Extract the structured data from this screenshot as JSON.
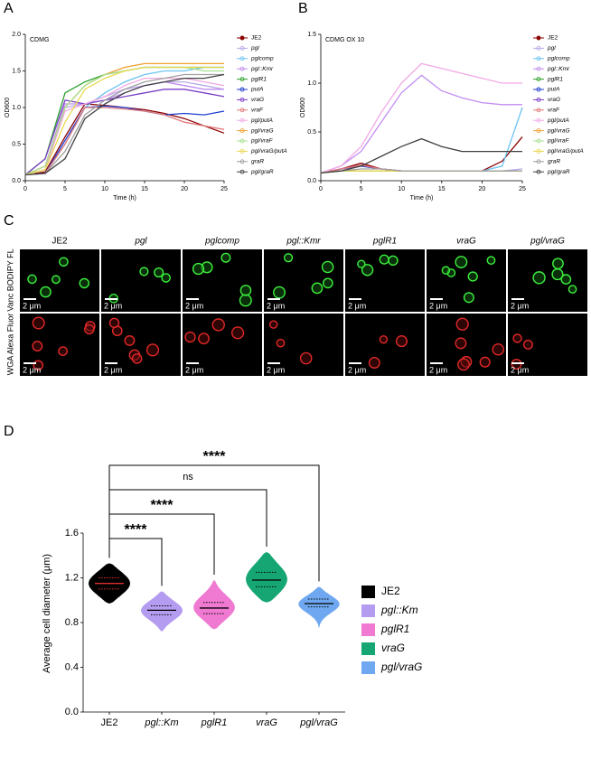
{
  "panel_labels": [
    "A",
    "B",
    "C",
    "D"
  ],
  "chart_data": [
    {
      "type": "line",
      "title": "CDMG",
      "x_label": "Time (h)",
      "y_label": "OD600",
      "x": [
        0,
        2.5,
        5,
        7.5,
        10,
        12.5,
        15,
        17.5,
        20,
        22.5,
        25
      ],
      "xlim": [
        0,
        25
      ],
      "xticks": [
        0,
        5,
        10,
        15,
        20,
        25
      ],
      "ylim": [
        0,
        2
      ],
      "yticks": [
        {
          "value": 0,
          "label": "0.0"
        },
        0.5,
        {
          "value": 1,
          "label": "1.0"
        },
        1.5,
        {
          "value": 2,
          "label": "2.0"
        }
      ],
      "series": [
        {
          "name": "JE2",
          "color": "#8b0000",
          "values": [
            0.08,
            0.12,
            0.6,
            1.05,
            1.03,
            1.0,
            0.97,
            0.92,
            0.85,
            0.75,
            0.65
          ]
        },
        {
          "name": "pgl",
          "color": "#b8a9e8",
          "values": [
            0.08,
            0.15,
            1.0,
            1.05,
            1.15,
            1.25,
            1.3,
            1.35,
            1.35,
            1.3,
            1.25
          ]
        },
        {
          "name": "pglcomp",
          "color": "#6cc3f0",
          "values": [
            0.08,
            0.1,
            0.5,
            1.0,
            1.2,
            1.35,
            1.45,
            1.5,
            1.5,
            1.55,
            1.55
          ]
        },
        {
          "name": "pgl::Kmr",
          "color": "#c08cf0",
          "values": [
            0.08,
            0.2,
            1.05,
            1.05,
            1.1,
            1.2,
            1.3,
            1.35,
            1.3,
            1.25,
            1.25
          ]
        },
        {
          "name": "pglR1",
          "color": "#2ca02c",
          "values": [
            0.08,
            0.3,
            1.2,
            1.35,
            1.45,
            1.5,
            1.55,
            1.55,
            1.55,
            1.55,
            1.55
          ]
        },
        {
          "name": "putA",
          "color": "#1f3fd0",
          "values": [
            0.08,
            0.1,
            0.55,
            1.0,
            1.02,
            1.0,
            0.95,
            0.9,
            0.92,
            0.9,
            0.95
          ]
        },
        {
          "name": "vraG",
          "color": "#7b3fc8",
          "values": [
            0.08,
            0.3,
            1.1,
            1.05,
            1.1,
            1.15,
            1.2,
            1.25,
            1.25,
            1.2,
            1.15
          ]
        },
        {
          "name": "vraF",
          "color": "#e07a7a",
          "values": [
            0.08,
            0.1,
            0.5,
            1.0,
            1.0,
            0.98,
            0.95,
            0.9,
            0.8,
            0.75,
            0.7
          ]
        },
        {
          "name": "pgl/putA",
          "color": "#f2a9e6",
          "values": [
            0.08,
            0.15,
            0.95,
            1.05,
            1.15,
            1.3,
            1.4,
            1.4,
            1.4,
            1.35,
            1.3
          ]
        },
        {
          "name": "pgl/vraG",
          "color": "#f0a030",
          "values": [
            0.08,
            0.2,
            1.0,
            1.3,
            1.45,
            1.55,
            1.6,
            1.6,
            1.6,
            1.6,
            1.6
          ]
        },
        {
          "name": "pgl/vraF",
          "color": "#a8e090",
          "values": [
            0.08,
            0.2,
            1.0,
            1.3,
            1.45,
            1.5,
            1.55,
            1.55,
            1.55,
            1.5,
            1.5
          ]
        },
        {
          "name": "pgl/vraG/putA",
          "color": "#e8d850",
          "values": [
            0.08,
            0.15,
            0.8,
            1.25,
            1.4,
            1.5,
            1.55,
            1.55,
            1.55,
            1.55,
            1.55
          ]
        },
        {
          "name": "graR",
          "color": "#a0a0a0",
          "values": [
            0.08,
            0.1,
            0.4,
            0.9,
            1.1,
            1.25,
            1.35,
            1.4,
            1.45,
            1.45,
            1.45
          ]
        },
        {
          "name": "pgl/graR",
          "color": "#404040",
          "values": [
            0.08,
            0.1,
            0.3,
            0.85,
            1.05,
            1.2,
            1.3,
            1.35,
            1.4,
            1.4,
            1.45
          ]
        }
      ]
    },
    {
      "type": "line",
      "title": "CDMG OX 10",
      "x_label": "Time (h)",
      "y_label": "OD600",
      "x": [
        0,
        2.5,
        5,
        7.5,
        10,
        12.5,
        15,
        17.5,
        20,
        22.5,
        25
      ],
      "xlim": [
        0,
        25
      ],
      "xticks": [
        0,
        5,
        10,
        15,
        20,
        25
      ],
      "ylim": [
        0,
        1.5
      ],
      "yticks": [
        {
          "value": 0,
          "label": "0.0"
        },
        0.5,
        {
          "value": 1,
          "label": "1.0"
        },
        1.5
      ],
      "series": [
        {
          "name": "JE2",
          "color": "#8b0000",
          "values": [
            0.08,
            0.12,
            0.18,
            0.12,
            0.1,
            0.1,
            0.1,
            0.1,
            0.1,
            0.2,
            0.45
          ]
        },
        {
          "name": "pgl",
          "color": "#b8a9e8",
          "values": [
            0.08,
            0.1,
            0.1,
            0.1,
            0.1,
            0.1,
            0.1,
            0.1,
            0.1,
            0.1,
            0.12
          ]
        },
        {
          "name": "pglcomp",
          "color": "#6cc3f0",
          "values": [
            0.08,
            0.1,
            0.1,
            0.1,
            0.1,
            0.1,
            0.1,
            0.1,
            0.1,
            0.15,
            0.75
          ]
        },
        {
          "name": "pgl::Kmr",
          "color": "#c08cf0",
          "values": [
            0.08,
            0.15,
            0.3,
            0.6,
            0.9,
            1.08,
            0.92,
            0.85,
            0.8,
            0.78,
            0.78
          ]
        },
        {
          "name": "pglR1",
          "color": "#2ca02c",
          "values": [
            0.08,
            0.1,
            0.1,
            0.1,
            0.1,
            0.1,
            0.1,
            0.1,
            0.1,
            0.1,
            0.1
          ]
        },
        {
          "name": "putA",
          "color": "#1f3fd0",
          "values": [
            0.08,
            0.12,
            0.15,
            0.12,
            0.1,
            0.1,
            0.1,
            0.1,
            0.1,
            0.1,
            0.1
          ]
        },
        {
          "name": "vraG",
          "color": "#7b3fc8",
          "values": [
            0.08,
            0.12,
            0.16,
            0.12,
            0.1,
            0.1,
            0.1,
            0.1,
            0.1,
            0.1,
            0.1
          ]
        },
        {
          "name": "vraF",
          "color": "#e07a7a",
          "values": [
            0.08,
            0.12,
            0.16,
            0.12,
            0.1,
            0.1,
            0.1,
            0.1,
            0.1,
            0.1,
            0.1
          ]
        },
        {
          "name": "pgl/putA",
          "color": "#f2a9e6",
          "values": [
            0.08,
            0.15,
            0.35,
            0.7,
            1.0,
            1.2,
            1.15,
            1.1,
            1.05,
            1.0,
            1.0
          ]
        },
        {
          "name": "pgl/vraG",
          "color": "#f0a030",
          "values": [
            0.08,
            0.1,
            0.1,
            0.1,
            0.1,
            0.1,
            0.1,
            0.1,
            0.1,
            0.1,
            0.1
          ]
        },
        {
          "name": "pgl/vraF",
          "color": "#a8e090",
          "values": [
            0.08,
            0.1,
            0.1,
            0.1,
            0.1,
            0.1,
            0.1,
            0.1,
            0.1,
            0.1,
            0.1
          ]
        },
        {
          "name": "pgl/vraG/putA",
          "color": "#e8d850",
          "values": [
            0.08,
            0.1,
            0.1,
            0.1,
            0.1,
            0.1,
            0.1,
            0.1,
            0.1,
            0.1,
            0.1
          ]
        },
        {
          "name": "graR",
          "color": "#a0a0a0",
          "values": [
            0.08,
            0.1,
            0.12,
            0.12,
            0.1,
            0.1,
            0.1,
            0.1,
            0.1,
            0.1,
            0.1
          ]
        },
        {
          "name": "pgl/graR",
          "color": "#404040",
          "values": [
            0.08,
            0.1,
            0.15,
            0.25,
            0.35,
            0.43,
            0.35,
            0.3,
            0.3,
            0.3,
            0.3
          ]
        }
      ]
    },
    {
      "type": "violin",
      "y_label": "Average cell diameter (μm)",
      "categories": [
        "JE2",
        "pgl::Km",
        "pglR1",
        "vraG",
        "pgl/vraG"
      ],
      "colors": [
        "#000000",
        "#b49cf0",
        "#f07ad2",
        "#16a673",
        "#6fa8f0"
      ],
      "median": [
        1.15,
        0.91,
        0.93,
        1.18,
        0.97
      ],
      "q1": [
        1.1,
        0.87,
        0.88,
        1.12,
        0.94
      ],
      "q3": [
        1.2,
        0.95,
        0.98,
        1.25,
        1.01
      ],
      "min": [
        0.97,
        0.72,
        0.74,
        0.98,
        0.75
      ],
      "max": [
        1.33,
        1.08,
        1.18,
        1.43,
        1.12
      ],
      "significance": [
        null,
        "****",
        "****",
        "ns",
        "****"
      ],
      "ylim": [
        0,
        1.6
      ],
      "yticks": [
        {
          "value": 0,
          "label": "0.0"
        },
        0.4,
        0.8,
        1.2,
        1.6
      ]
    }
  ],
  "panel_c": {
    "columns": [
      "JE2",
      "pgl",
      "pglcomp",
      "pgl::Kmr",
      "pglR1",
      "vraG",
      "pgl/vraG"
    ],
    "rows": [
      "Vanc BODIPY FL",
      "WGA Alexa Fluor"
    ],
    "scale_bar": "2 μm"
  }
}
